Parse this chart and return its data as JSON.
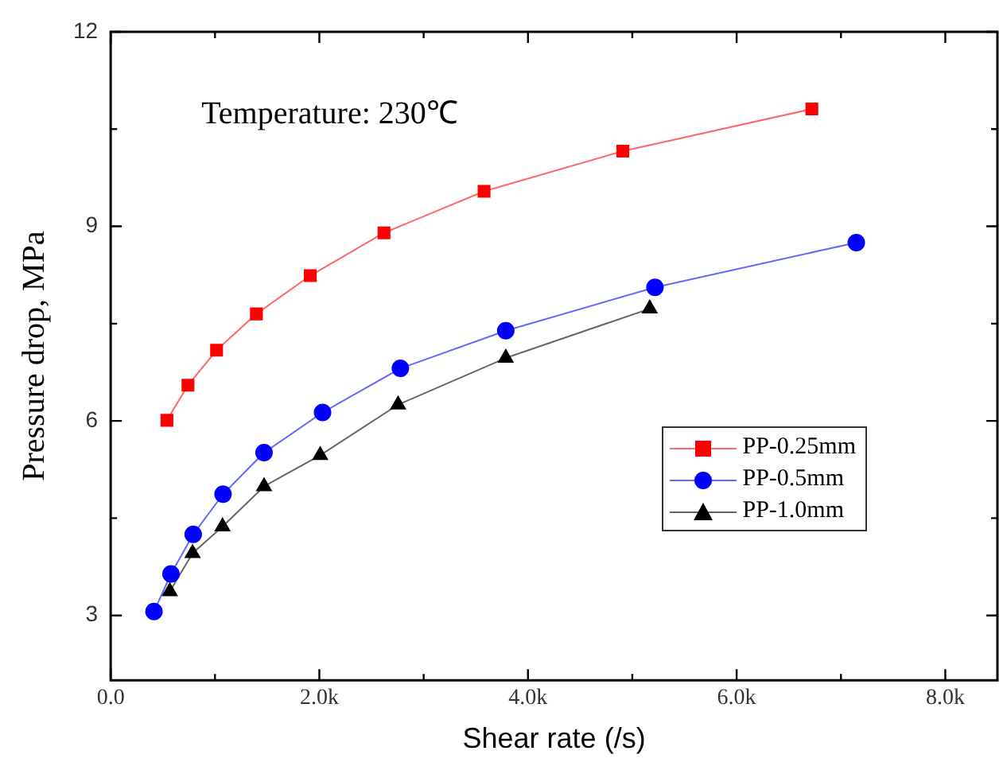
{
  "chart_data": {
    "type": "line",
    "xlabel": "Shear rate (/s)",
    "ylabel": "Pressure drop, MPa",
    "annotations": [
      "Temperature: 230℃"
    ],
    "xlim": [
      0,
      8500
    ],
    "xticks": [
      {
        "value": 0,
        "label": "0.0"
      },
      {
        "value": 1000,
        "label": null
      },
      {
        "value": 2000,
        "label": "2.0k"
      },
      {
        "value": 3000,
        "label": null
      },
      {
        "value": 4000,
        "label": "4.0k"
      },
      {
        "value": 5000,
        "label": null
      },
      {
        "value": 6000,
        "label": "6.0k"
      },
      {
        "value": 7000,
        "label": null
      },
      {
        "value": 8000,
        "label": "8.0k"
      }
    ],
    "ylim": [
      2,
      12
    ],
    "yticks": [
      3,
      {
        "value": 4.5,
        "label": null
      },
      6,
      {
        "value": 7.5,
        "label": null
      },
      9,
      {
        "value": 10.5,
        "label": null
      },
      12
    ],
    "grid": false,
    "legend": "bottom right",
    "line_style": "solid",
    "series": [
      {
        "name": "PP-0.25mm",
        "color": "#ff0000",
        "marker": "square",
        "x": [
          539,
          741,
          1015,
          1397,
          1913,
          2620,
          3579,
          4909,
          6721
        ],
        "values": [
          6.01,
          6.55,
          7.09,
          7.65,
          8.24,
          8.9,
          9.54,
          10.16,
          10.81
        ]
      },
      {
        "name": "PP-0.5mm",
        "color": "#0000ff",
        "marker": "circle",
        "x": [
          415,
          578,
          791,
          1077,
          1470,
          2031,
          2777,
          3787,
          5217,
          7147
        ],
        "values": [
          3.06,
          3.64,
          4.25,
          4.87,
          5.51,
          6.13,
          6.81,
          7.39,
          8.06,
          8.75
        ]
      },
      {
        "name": "PP-1.0mm",
        "color": "#000000",
        "marker": "triangle",
        "x": [
          567,
          785,
          1072,
          1470,
          2008,
          2755,
          3787,
          5167
        ],
        "values": [
          3.37,
          3.96,
          4.37,
          4.99,
          5.47,
          6.25,
          6.97,
          7.73
        ]
      }
    ]
  }
}
